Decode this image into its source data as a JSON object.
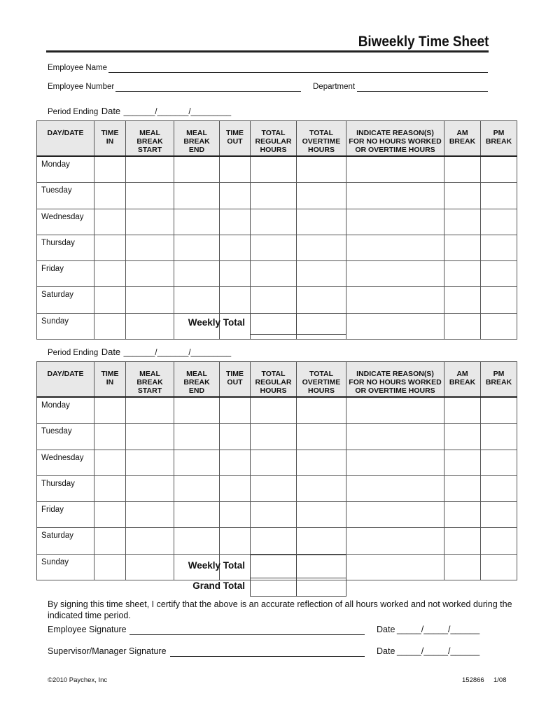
{
  "title": "Biweekly Time Sheet",
  "fields": {
    "employee_name": "Employee Name",
    "employee_number": "Employee Number",
    "department": "Department",
    "period_ending": "Period Ending",
    "date": "Date"
  },
  "columns": [
    "DAY/DATE",
    "TIME\nIN",
    "MEAL\nBREAK\nSTART",
    "MEAL\nBREAK\nEND",
    "TIME\nOUT",
    "TOTAL\nREGULAR\nHOURS",
    "TOTAL\nOVERTIME\nHOURS",
    "INDICATE REASON(S)\nFOR NO HOURS WORKED\nOR OVERTIME HOURS",
    "AM\nBREAK",
    "PM\nBREAK"
  ],
  "days": [
    "Monday",
    "Tuesday",
    "Wednesday",
    "Thursday",
    "Friday",
    "Saturday",
    "Sunday"
  ],
  "weekly_total": "Weekly Total",
  "grand_total": "Grand Total",
  "certification": "By signing this time sheet, I certify that the above is an accurate reflection of all hours worked and not worked during the indicated time period.",
  "signatures": {
    "employee": "Employee Signature",
    "supervisor": "Supervisor/Manager Signature",
    "date": "Date",
    "date_blank": "_____/_____/______"
  },
  "footer": {
    "copyright": "©2010 Paychex, Inc",
    "form_number": "152866",
    "revision": "1/08"
  }
}
